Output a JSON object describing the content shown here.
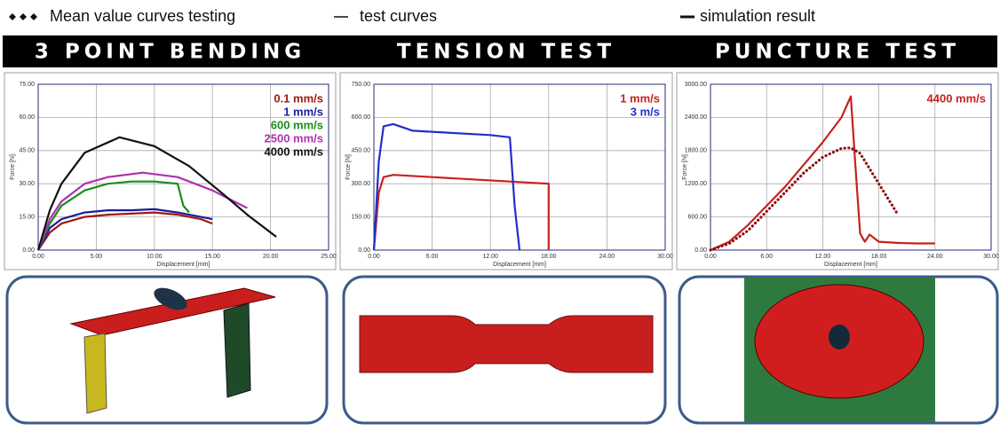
{
  "legend": [
    "Mean value curves testing",
    "test curves",
    "simulation result"
  ],
  "chart_data": [
    {
      "type": "line",
      "title": "3 POINT BENDING",
      "xlabel": "Displacement [mm]",
      "ylabel": "Force [N]",
      "grid": true,
      "xlim": [
        0,
        25
      ],
      "ylim": [
        0,
        75
      ],
      "xticks": [
        {
          "value": 0,
          "label": "0.00"
        },
        {
          "value": 5,
          "label": "5.00"
        },
        {
          "value": 10,
          "label": "10.00"
        },
        {
          "value": 15,
          "label": "15.00"
        },
        {
          "value": 20,
          "label": "20.00"
        },
        {
          "value": 25,
          "label": "25.00"
        }
      ],
      "yticks": [
        {
          "value": 0,
          "label": "0.00"
        },
        {
          "value": 15,
          "label": "15.00"
        },
        {
          "value": 30,
          "label": "30.00"
        },
        {
          "value": 45,
          "label": "45.00"
        },
        {
          "value": 60,
          "label": "60.00"
        },
        {
          "value": 75,
          "label": "75.00"
        }
      ],
      "series": [
        {
          "name": "0.1 mm/s",
          "color": "#a01818",
          "x": [
            0,
            1,
            2,
            4,
            6,
            8,
            10,
            12,
            14,
            15
          ],
          "values": [
            0,
            8,
            12,
            15,
            16,
            16.5,
            17,
            16,
            14,
            12
          ]
        },
        {
          "name": "1 mm/s",
          "color": "#1c1c9c",
          "x": [
            0,
            1,
            2,
            4,
            6,
            8,
            10,
            12,
            14,
            15
          ],
          "values": [
            0,
            10,
            14,
            17,
            18,
            18,
            18.5,
            17,
            15,
            14
          ]
        },
        {
          "name": "600 mm/s",
          "color": "#1e8c1e",
          "x": [
            0,
            1,
            2,
            4,
            6,
            8,
            10,
            12,
            12.5,
            13
          ],
          "values": [
            0,
            12,
            20,
            27,
            30,
            31,
            31,
            30,
            20,
            17
          ]
        },
        {
          "name": "2500 mm/s",
          "color": "#b030b0",
          "x": [
            0,
            1,
            2,
            4,
            6,
            9,
            12,
            15,
            18
          ],
          "values": [
            0,
            14,
            22,
            30,
            33,
            35,
            33,
            27,
            19
          ]
        },
        {
          "name": "4000 mm/s",
          "color": "#111111",
          "x": [
            0,
            1,
            2,
            4,
            7,
            10,
            13,
            16,
            18,
            20,
            20.5
          ],
          "values": [
            0,
            18,
            30,
            44,
            51,
            47,
            38,
            25,
            16,
            8,
            6
          ]
        }
      ]
    },
    {
      "type": "line",
      "title": "TENSION TEST",
      "xlabel": "Displacement [mm]",
      "ylabel": "Force [N]",
      "grid": true,
      "xlim": [
        0,
        30
      ],
      "ylim": [
        0,
        750
      ],
      "xticks": [
        {
          "value": 0,
          "label": "0.00"
        },
        {
          "value": 6,
          "label": "6.00"
        },
        {
          "value": 12,
          "label": "12.00"
        },
        {
          "value": 18,
          "label": "18.00"
        },
        {
          "value": 24,
          "label": "24.00"
        },
        {
          "value": 30,
          "label": "30.00"
        }
      ],
      "yticks": [
        {
          "value": 0,
          "label": "0.00"
        },
        {
          "value": 150,
          "label": "150.00"
        },
        {
          "value": 300,
          "label": "300.00"
        },
        {
          "value": 450,
          "label": "450.00"
        },
        {
          "value": 600,
          "label": "600.00"
        },
        {
          "value": 750,
          "label": "750.00"
        }
      ],
      "series": [
        {
          "name": "1 mm/s",
          "color": "#c82020",
          "x": [
            0,
            0.5,
            1,
            2,
            6,
            10,
            14,
            18,
            18
          ],
          "values": [
            0,
            260,
            330,
            340,
            330,
            320,
            310,
            300,
            0
          ]
        },
        {
          "name": "3 m/s",
          "color": "#2030c8",
          "x": [
            0,
            0.5,
            1,
            2,
            4,
            8,
            12,
            14,
            14.5,
            15
          ],
          "values": [
            0,
            400,
            560,
            570,
            540,
            530,
            520,
            510,
            200,
            0
          ]
        }
      ]
    },
    {
      "type": "line",
      "title": "PUNCTURE TEST",
      "xlabel": "Displacement [mm]",
      "ylabel": "Force [N]",
      "grid": true,
      "xlim": [
        0,
        30
      ],
      "ylim": [
        0,
        3000
      ],
      "xticks": [
        {
          "value": 0,
          "label": "0.00"
        },
        {
          "value": 6,
          "label": "6.00"
        },
        {
          "value": 12,
          "label": "12.00"
        },
        {
          "value": 18,
          "label": "18.00"
        },
        {
          "value": 24,
          "label": "24.00"
        },
        {
          "value": 30,
          "label": "30.00"
        }
      ],
      "yticks": [
        {
          "value": 0,
          "label": "0.00"
        },
        {
          "value": 600,
          "label": "600.00"
        },
        {
          "value": 1200,
          "label": "1200.00"
        },
        {
          "value": 1800,
          "label": "1800.00"
        },
        {
          "value": 2400,
          "label": "2400.00"
        },
        {
          "value": 3000,
          "label": "3000.00"
        }
      ],
      "series": [
        {
          "name": "4400 mm/s",
          "color": "#c82020",
          "x": [
            0,
            2,
            4,
            6,
            8,
            10,
            12,
            14,
            15,
            15.5,
            16,
            16.5,
            17,
            18,
            20,
            22,
            24
          ],
          "values": [
            0,
            150,
            450,
            800,
            1150,
            1550,
            1950,
            2400,
            2780,
            1500,
            300,
            150,
            280,
            150,
            130,
            120,
            120
          ]
        },
        {
          "color": "#8a1010",
          "style": "dotted",
          "x": [
            0,
            2,
            4,
            6,
            8,
            10,
            12,
            14,
            15,
            16,
            18,
            20
          ],
          "values": [
            0,
            120,
            350,
            700,
            1050,
            1400,
            1680,
            1840,
            1850,
            1750,
            1200,
            650
          ]
        }
      ]
    }
  ]
}
